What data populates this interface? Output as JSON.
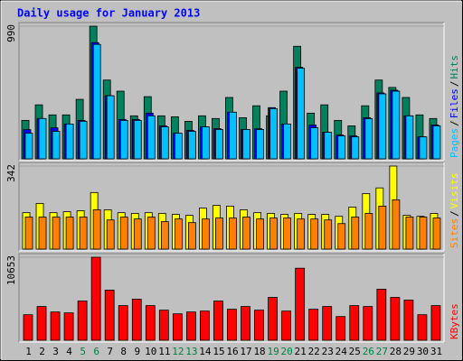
{
  "chart_data": {
    "type": "bar",
    "title": "Daily usage for January 2013",
    "categories": [
      "1",
      "2",
      "3",
      "4",
      "5",
      "6",
      "7",
      "8",
      "9",
      "10",
      "11",
      "12",
      "13",
      "14",
      "15",
      "16",
      "17",
      "18",
      "19",
      "20",
      "21",
      "22",
      "23",
      "24",
      "25",
      "26",
      "27",
      "28",
      "29",
      "30",
      "31"
    ],
    "category_colors": [
      "#000000",
      "#000000",
      "#000000",
      "#000000",
      "#008040",
      "#008040",
      "#000000",
      "#000000",
      "#000000",
      "#000000",
      "#000000",
      "#008040",
      "#008040",
      "#000000",
      "#000000",
      "#000000",
      "#000000",
      "#000000",
      "#008040",
      "#008040",
      "#000000",
      "#000000",
      "#000000",
      "#000000",
      "#000000",
      "#008040",
      "#008040",
      "#000000",
      "#000000",
      "#000000",
      "#000000"
    ],
    "legend_separator": "/",
    "panels": [
      {
        "ylim": [
          0,
          990
        ],
        "yticks": [
          990
        ],
        "series": [
          {
            "name": "Hits",
            "color": "#00805c",
            "values": [
              287,
              403,
              328,
              328,
              444,
              990,
              588,
              505,
              321,
              464,
              321,
              314,
              280,
              321,
              301,
              458,
              307,
              396,
              321,
              505,
              840,
              341,
              403,
              287,
              246,
              396,
              588,
              533,
              458,
              328,
              301
            ]
          },
          {
            "name": "Files",
            "color": "#0000ff",
            "values": [
              218,
              301,
              232,
              260,
              287,
              867,
              471,
              294,
              294,
              341,
              246,
              191,
              212,
              239,
              225,
              348,
              219,
              225,
              382,
              260,
              683,
              252,
              198,
              178,
              171,
              307,
              492,
              512,
              321,
              164,
              253
            ]
          },
          {
            "name": "Pages",
            "color": "#00c0ff",
            "values": [
              191,
              301,
              205,
              260,
              280,
              854,
              471,
              287,
              287,
              321,
              239,
              191,
              205,
              239,
              219,
              348,
              219,
              219,
              375,
              260,
              676,
              232,
              198,
              171,
              164,
              300,
              485,
              505,
              321,
              164,
              246
            ]
          }
        ]
      },
      {
        "ylim": [
          0,
          342
        ],
        "yticks": [
          342
        ],
        "series": [
          {
            "name": "Visits",
            "color": "#ffff00",
            "values": [
              150,
              188,
              150,
              154,
              158,
              233,
              162,
              150,
              147,
              150,
              147,
              143,
              139,
              169,
              180,
              177,
              162,
              150,
              147,
              143,
              147,
              143,
              143,
              135,
              173,
              229,
              252,
              342,
              139,
              135,
              147
            ]
          },
          {
            "name": "Sites",
            "color": "#ff8000",
            "values": [
              132,
              132,
              132,
              132,
              132,
              162,
              120,
              132,
              124,
              132,
              113,
              124,
              109,
              124,
              128,
              128,
              132,
              124,
              128,
              128,
              124,
              124,
              120,
              105,
              132,
              147,
              177,
              203,
              132,
              132,
              128
            ]
          }
        ]
      },
      {
        "ylim": [
          0,
          10653
        ],
        "yticks": [
          10653
        ],
        "series": [
          {
            "name": "KBytes",
            "color": "#ff0000",
            "values": [
              3276,
              4329,
              3627,
              3510,
              5031,
              10653,
              6435,
              4446,
              5265,
              4446,
              3861,
              3393,
              3627,
              3744,
              5031,
              3978,
              4329,
              3861,
              5499,
              3744,
              9243,
              3978,
              4329,
              3042,
              4446,
              4329,
              6552,
              5499,
              5148,
              3276,
              4446
            ]
          }
        ]
      }
    ]
  }
}
